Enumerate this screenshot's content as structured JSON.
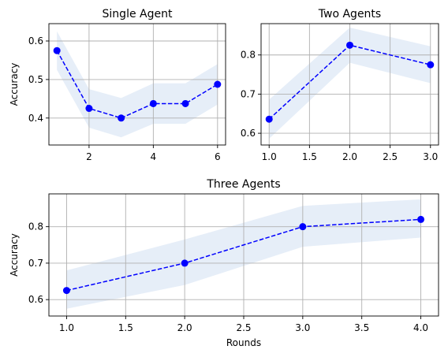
{
  "chart_data": [
    {
      "type": "line",
      "title": "Single Agent",
      "xlabel": "",
      "ylabel": "Accuracy",
      "x": [
        1,
        2,
        3,
        4,
        5,
        6
      ],
      "series": [
        {
          "values": [
            0.575,
            0.425,
            0.4,
            0.4375,
            0.4375,
            0.4875
          ],
          "lower": [
            0.525,
            0.375,
            0.35,
            0.385,
            0.385,
            0.435
          ],
          "upper": [
            0.625,
            0.475,
            0.452,
            0.49,
            0.49,
            0.54
          ]
        }
      ],
      "xlim": [
        0.75,
        6.25
      ],
      "ylim": [
        0.33,
        0.645
      ],
      "xticks": [
        2,
        4,
        6
      ],
      "xtick_labels": [
        "2",
        "4",
        "6"
      ],
      "yticks": [
        0.4,
        0.5,
        0.6
      ],
      "ytick_labels": [
        "0.4",
        "0.5",
        "0.6"
      ],
      "grid": true
    },
    {
      "type": "line",
      "title": "Two Agents",
      "xlabel": "",
      "ylabel": "",
      "x": [
        1,
        2,
        3
      ],
      "series": [
        {
          "values": [
            0.636,
            0.825,
            0.775
          ],
          "lower": [
            0.586,
            0.78,
            0.728
          ],
          "upper": [
            0.686,
            0.87,
            0.822
          ]
        }
      ],
      "xlim": [
        0.9,
        3.1
      ],
      "ylim": [
        0.57,
        0.88
      ],
      "xticks": [
        1.0,
        1.5,
        2.0,
        2.5,
        3.0
      ],
      "xtick_labels": [
        "1.0",
        "1.5",
        "2.0",
        "2.5",
        "3.0"
      ],
      "yticks": [
        0.6,
        0.7,
        0.8
      ],
      "ytick_labels": [
        "0.6",
        "0.7",
        "0.8"
      ],
      "grid": true
    },
    {
      "type": "line",
      "title": "Three Agents",
      "xlabel": "Rounds",
      "ylabel": "Accuracy",
      "x": [
        1,
        2,
        3,
        4
      ],
      "series": [
        {
          "values": [
            0.625,
            0.7,
            0.8,
            0.82
          ],
          "lower": [
            0.575,
            0.64,
            0.745,
            0.77
          ],
          "upper": [
            0.68,
            0.765,
            0.857,
            0.875
          ]
        }
      ],
      "xlim": [
        0.85,
        4.15
      ],
      "ylim": [
        0.555,
        0.89
      ],
      "xticks": [
        1.0,
        1.5,
        2.0,
        2.5,
        3.0,
        3.5,
        4.0
      ],
      "xtick_labels": [
        "1.0",
        "1.5",
        "2.0",
        "2.5",
        "3.0",
        "3.5",
        "4.0"
      ],
      "yticks": [
        0.6,
        0.7,
        0.8
      ],
      "ytick_labels": [
        "0.6",
        "0.7",
        "0.8"
      ],
      "grid": true
    }
  ],
  "colors": {
    "line": "#0000ff",
    "band": "#e6eef8",
    "grid": "#b0b0b0",
    "frame": "#000000"
  }
}
